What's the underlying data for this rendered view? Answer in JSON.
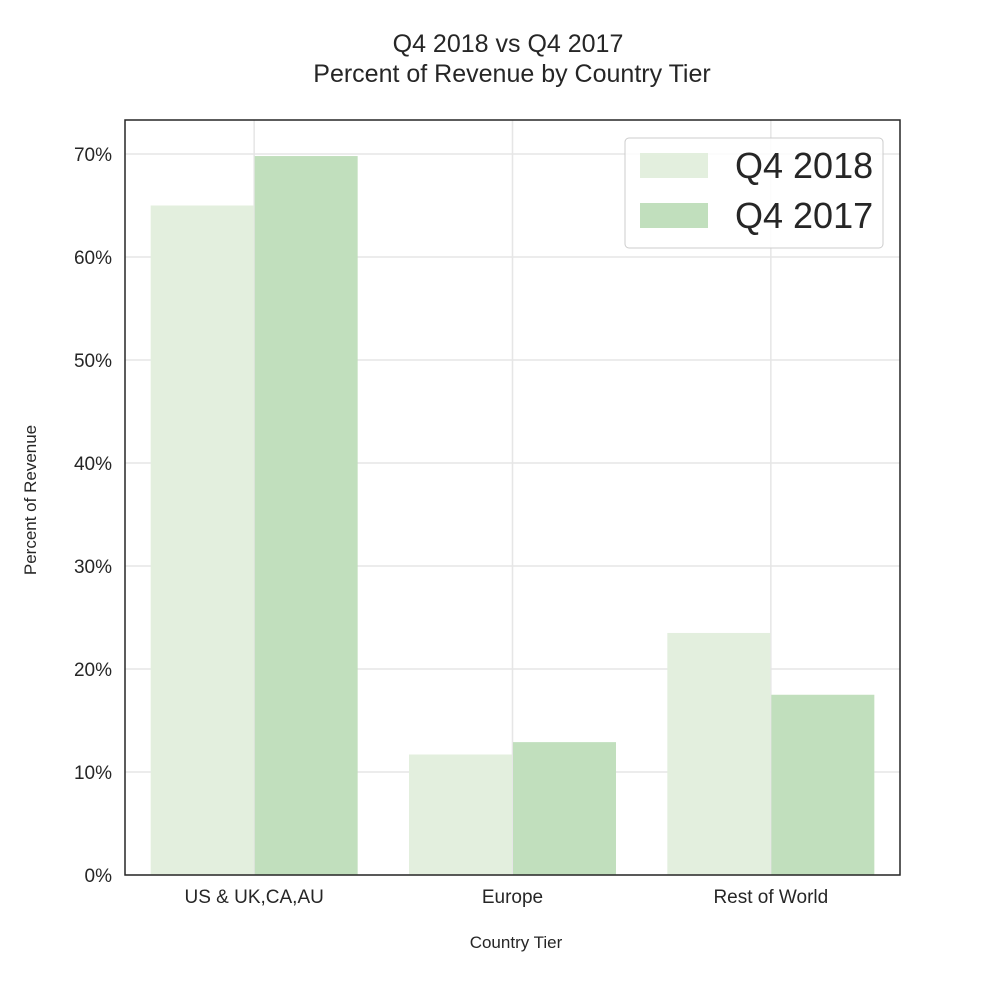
{
  "chart_data": {
    "type": "bar",
    "title": [
      "Q4 2018 vs Q4 2017",
      "Percent of Revenue by Country Tier"
    ],
    "xlabel": "Country Tier",
    "ylabel": "Percent of Revenue",
    "categories": [
      "US & UK,CA,AU",
      "Europe",
      "Rest of World"
    ],
    "series": [
      {
        "name": "Q4 2018",
        "values": [
          65.0,
          11.7,
          23.5
        ],
        "color": "#e3efde"
      },
      {
        "name": "Q4 2017",
        "values": [
          69.8,
          12.9,
          17.5
        ],
        "color": "#c1dfbd"
      }
    ],
    "ylim": [
      0,
      73.3
    ],
    "yticks": [
      0,
      10,
      20,
      30,
      40,
      50,
      60,
      70
    ],
    "ytick_labels": [
      "0%",
      "10%",
      "20%",
      "30%",
      "40%",
      "50%",
      "60%",
      "70%"
    ],
    "grid": true,
    "legend_position": "top-right"
  }
}
